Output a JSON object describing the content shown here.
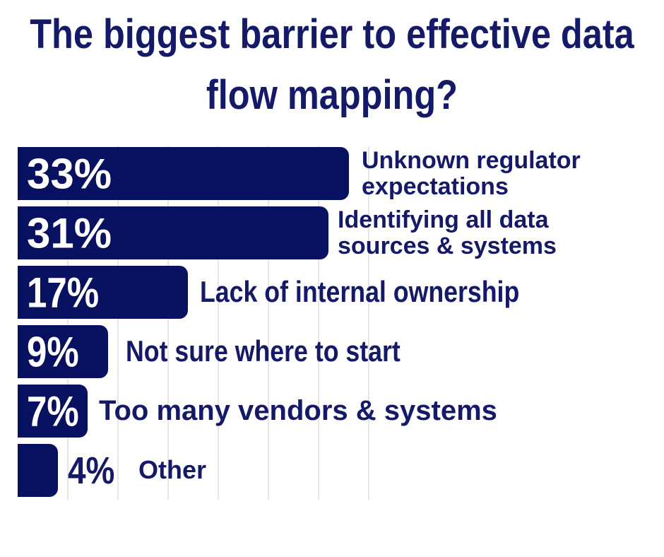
{
  "colors": {
    "bar_fill": "#071160",
    "text_navy": "#141a68",
    "value_text_inside_bar": "#ffffff",
    "gridline": "#e7e7e7",
    "background": "#ffffff"
  },
  "chart_data": {
    "type": "bar",
    "orientation": "horizontal",
    "title": "The biggest barrier to effective data flow mapping?",
    "categories": [
      "Unknown regulator expectations",
      "Identifying all data sources & systems",
      "Lack of internal ownership",
      "Not sure where to start",
      "Too many vendors & systems",
      "Other"
    ],
    "values": [
      33,
      31,
      17,
      9,
      7,
      4
    ],
    "value_labels": [
      "33%",
      "31%",
      "17%",
      "9%",
      "7%",
      "4%"
    ],
    "unit": "%",
    "xlim": [
      0,
      35
    ],
    "gridline_interval": 5,
    "grid": "vertical-light-gray",
    "legend": "none",
    "value_label_position": "inside-bar-left (last bar: outside-right)",
    "category_label_position": "right-of-bar",
    "rows": [
      {
        "value": 33,
        "label": "33%",
        "category": "Unknown regulator\nexpectations"
      },
      {
        "value": 31,
        "label": "31%",
        "category": "Identifying all data\nsources & systems"
      },
      {
        "value": 17,
        "label": "17%",
        "category": "Lack of internal ownership"
      },
      {
        "value": 9,
        "label": "9%",
        "category": "Not sure where to start"
      },
      {
        "value": 7,
        "label": "7%",
        "category": "Too many vendors & systems"
      },
      {
        "value": 4,
        "label": "4%",
        "category": "Other"
      }
    ]
  }
}
